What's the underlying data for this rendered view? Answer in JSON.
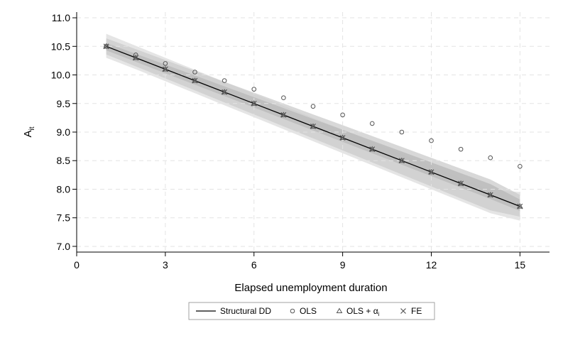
{
  "chart_data": {
    "type": "line",
    "xlabel": "Elapsed unemployment duration",
    "ylabel_main": "A",
    "ylabel_sub": "it",
    "xlim": [
      0,
      16
    ],
    "ylim": [
      6.9,
      11.1
    ],
    "x_ticks": [
      0,
      3,
      6,
      9,
      12,
      15
    ],
    "x_tick_labels": [
      "0",
      "3",
      "6",
      "9",
      "12",
      "15"
    ],
    "y_ticks": [
      7.0,
      7.5,
      8.0,
      8.5,
      9.0,
      9.5,
      10.0,
      10.5,
      11.0
    ],
    "y_tick_labels": [
      "7.0",
      "7.5",
      "8.0",
      "8.5",
      "9.0",
      "9.5",
      "10.0",
      "10.5",
      "11.0"
    ],
    "grid": "dashed",
    "legend_position": "bottom",
    "x": [
      1,
      2,
      3,
      4,
      5,
      6,
      7,
      8,
      9,
      10,
      11,
      12,
      13,
      14,
      15
    ],
    "series": [
      {
        "name": "Structural DD",
        "marker": "line",
        "values": [
          10.5,
          10.3,
          10.1,
          9.9,
          9.7,
          9.5,
          9.3,
          9.1,
          8.9,
          8.7,
          8.5,
          8.3,
          8.1,
          7.9,
          7.7
        ]
      },
      {
        "name": "OLS",
        "marker": "circle",
        "values": [
          10.5,
          10.35,
          10.2,
          10.05,
          9.9,
          9.75,
          9.6,
          9.45,
          9.3,
          9.15,
          9.0,
          8.85,
          8.7,
          8.55,
          8.4
        ]
      },
      {
        "name": "OLS + α",
        "name_sub": "i",
        "marker": "triangle",
        "values": [
          10.5,
          10.3,
          10.1,
          9.9,
          9.7,
          9.5,
          9.3,
          9.1,
          8.9,
          8.7,
          8.5,
          8.3,
          8.1,
          7.9,
          7.7
        ]
      },
      {
        "name": "FE",
        "marker": "x",
        "values": [
          10.5,
          10.3,
          10.1,
          9.9,
          9.7,
          9.5,
          9.3,
          9.1,
          8.9,
          8.7,
          8.5,
          8.3,
          8.1,
          7.9,
          7.7
        ]
      }
    ],
    "confidence_bands": [
      {
        "lower": [
          10.3,
          10.1,
          9.89,
          9.68,
          9.47,
          9.26,
          9.05,
          8.84,
          8.63,
          8.42,
          8.21,
          8.0,
          7.79,
          7.58,
          7.45
        ],
        "upper": [
          10.72,
          10.51,
          10.3,
          10.09,
          9.88,
          9.67,
          9.46,
          9.25,
          9.04,
          8.83,
          8.62,
          8.41,
          8.2,
          7.99,
          7.95
        ]
      },
      {
        "lower": [
          10.36,
          10.15,
          9.94,
          9.73,
          9.52,
          9.31,
          9.1,
          8.89,
          8.68,
          8.47,
          8.26,
          8.05,
          7.84,
          7.63,
          7.52
        ],
        "upper": [
          10.64,
          10.45,
          10.26,
          10.07,
          9.88,
          9.69,
          9.5,
          9.31,
          9.12,
          8.93,
          8.74,
          8.55,
          8.36,
          8.17,
          7.9
        ]
      },
      {
        "lower": [
          10.43,
          10.23,
          10.03,
          9.83,
          9.63,
          9.43,
          9.23,
          9.03,
          8.83,
          8.63,
          8.43,
          8.23,
          8.03,
          7.83,
          7.62
        ],
        "upper": [
          10.56,
          10.37,
          10.18,
          9.99,
          9.8,
          9.61,
          9.42,
          9.23,
          9.04,
          8.85,
          8.66,
          8.47,
          8.28,
          8.09,
          7.82
        ]
      }
    ],
    "colors": {
      "line": "#000000",
      "marker": "#555555",
      "grid": "#e3e3e3",
      "axis": "#000000",
      "bands": [
        "#dcdcdc",
        "#cbcbcb",
        "#b8b8b8"
      ],
      "legend_border": "#8c8c8c"
    }
  }
}
